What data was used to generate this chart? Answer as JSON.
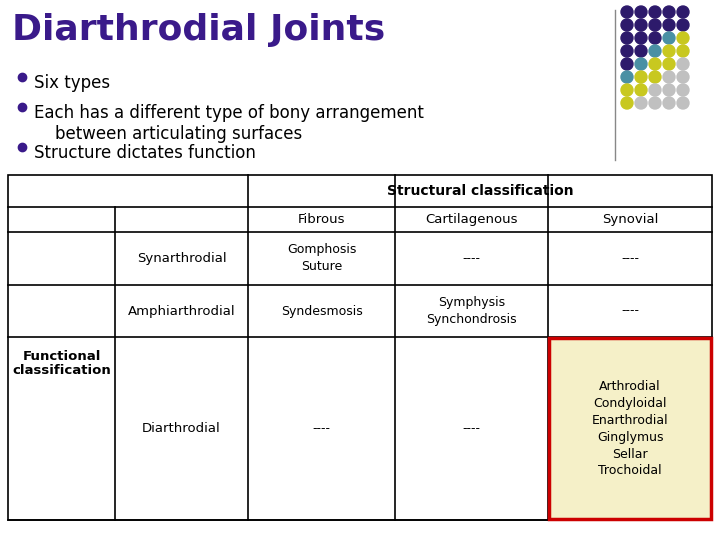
{
  "title": "Diarthrodial Joints",
  "title_color": "#3a1a8a",
  "bullets": [
    "Six types",
    "Each has a different type of bony arrangement\n    between articulating surfaces",
    "Structure dictates function"
  ],
  "bullet_color": "#000000",
  "bullet_dot_color": "#3a1a8a",
  "bg_color": "#ffffff",
  "table": {
    "structural_header": "Structural classification",
    "col_headers": [
      "Fibrous",
      "Cartilagenous",
      "Synovial"
    ],
    "row_group": "Functional\nclassification",
    "rows": [
      {
        "label": "Synarthrodial",
        "cells": [
          "Gomphosis\nSuture",
          "----",
          "----"
        ]
      },
      {
        "label": "Amphiarthrodial",
        "cells": [
          "Syndesmosis",
          "Symphysis\nSynchondrosis",
          "----"
        ]
      },
      {
        "label": "Diarthrodial",
        "cells": [
          "----",
          "----",
          "Arthrodial\nCondyloidal\nEnarthrodial\nGinglymus\nSellar\nTrochoidal"
        ]
      }
    ],
    "highlight_cell": [
      2,
      2
    ],
    "highlight_bg": "#f5f0c8",
    "highlight_border": "#cc0000",
    "table_border_color": "#000000"
  },
  "dot_colors_grid": [
    [
      "#2d1a6b",
      "#2d1a6b",
      "#2d1a6b"
    ],
    [
      "#2d1a6b",
      "#2d1a6b",
      "#2d1a6b"
    ],
    [
      "#2d1a6b",
      "#2d1a6b",
      "#2d1a6b"
    ],
    [
      "#2d1a6b",
      "#2d1a6b",
      "#2d1a6b"
    ],
    [
      "#2d1a6b",
      "#2d1a6b",
      "#2d1a6b"
    ],
    [
      "#2d1a6b",
      "#2d1a6b",
      "#2d1a6b"
    ],
    [
      "#2d1a6b",
      "#4a8fa8",
      "#c8c820"
    ],
    [
      "#2d1a6b",
      "#4a8fa8",
      "#c8c820"
    ],
    [
      "#2d1a6b",
      "#4a8fa8",
      "#c8c820"
    ],
    [
      "#4a8fa8",
      "#c8c820",
      "#c0c0c0"
    ],
    [
      "#4a8fa8",
      "#c8c820",
      "#c0c0c0"
    ],
    [
      "#c8c820",
      "#c0c0c0",
      "#c0c0c0"
    ]
  ],
  "dot_grid_rows": 8,
  "dot_grid_cols": 5,
  "dot_grid_colors": [
    [
      "#2d1a6b",
      "#2d1a6b",
      "#2d1a6b",
      "#2d1a6b",
      "#2d1a6b"
    ],
    [
      "#2d1a6b",
      "#2d1a6b",
      "#2d1a6b",
      "#2d1a6b",
      "#2d1a6b"
    ],
    [
      "#2d1a6b",
      "#2d1a6b",
      "#2d1a6b",
      "#4a90a4",
      "#c8c820"
    ],
    [
      "#2d1a6b",
      "#2d1a6b",
      "#4a90a4",
      "#c8c820",
      "#c8c820"
    ],
    [
      "#2d1a6b",
      "#4a90a4",
      "#c8c820",
      "#c8c820",
      "#c0c0c0"
    ],
    [
      "#4a90a4",
      "#c8c820",
      "#c8c820",
      "#c0c0c0",
      "#c0c0c0"
    ],
    [
      "#c8c820",
      "#c8c820",
      "#c0c0c0",
      "#c0c0c0",
      "#c0c0c0"
    ],
    [
      "#c8c820",
      "#c0c0c0",
      "#c0c0c0",
      "#c0c0c0",
      "#c0c0c0"
    ]
  ]
}
